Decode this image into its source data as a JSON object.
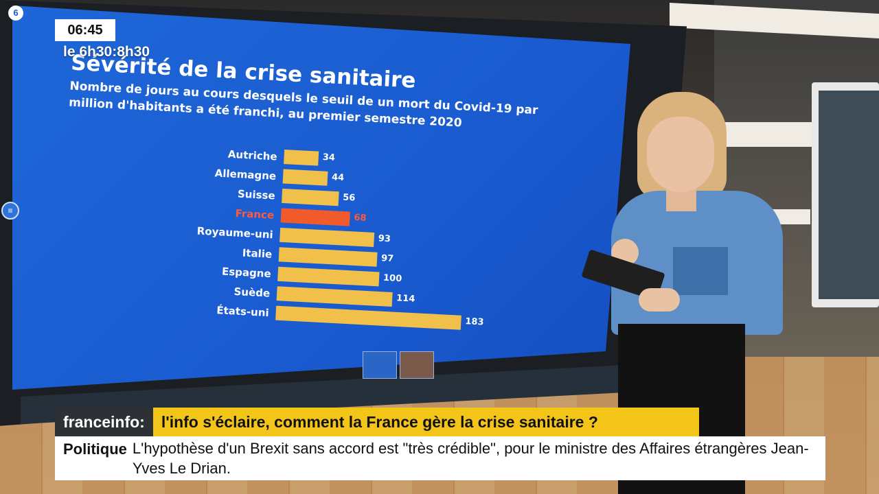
{
  "overlay": {
    "logo": "6",
    "clock": "06:45",
    "show_time": "le 6h30:8h30",
    "brand": "franceinfo:",
    "headline": "l'info s'éclaire, comment la France gère la crise sanitaire ?",
    "ticker_category": "Politique",
    "ticker_text": "L'hypothèse d'un Brexit sans accord est \"très crédible\", pour le ministre des Affaires étrangères Jean-Yves Le Drian."
  },
  "colors": {
    "screen_blue": "#1a5bd0",
    "bar": "#f0c04a",
    "bar_highlight": "#f15a2b",
    "headline_yellow": "#f3c518"
  },
  "chart_data": {
    "type": "bar",
    "orientation": "horizontal",
    "title": "Sévérité de la crise sanitaire",
    "subtitle": "Nombre de jours au cours desquels le seuil de un mort du Covid-19 par million d'habitants a été franchi, au premier semestre 2020",
    "categories": [
      "Autriche",
      "Allemagne",
      "Suisse",
      "France",
      "Royaume-uni",
      "Italie",
      "Espagne",
      "Suède",
      "États-uni"
    ],
    "values": [
      34,
      44,
      56,
      68,
      93,
      97,
      100,
      114,
      183
    ],
    "highlight": "France",
    "xlim": [
      0,
      183
    ]
  }
}
